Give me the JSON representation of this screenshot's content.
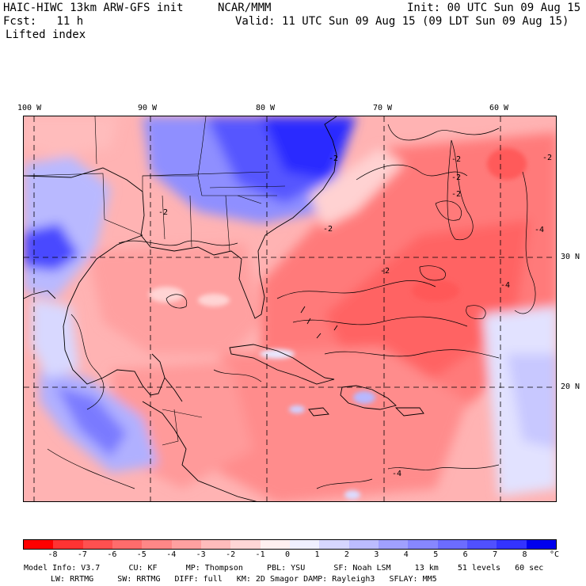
{
  "header": {
    "model": "HAIC-HIWC 13km ARW-GFS init",
    "org": "NCAR/MMM",
    "init": "Init: 00 UTC Sun 09 Aug 15",
    "fcst": "Fcst:   11 h",
    "valid": "Valid: 11 UTC Sun 09 Aug 15 (09 LDT Sun 09 Aug 15)",
    "field": "Lifted index"
  },
  "map": {
    "lon_labels": [
      "100 W",
      "90 W",
      "80 W",
      "70 W",
      "60 W"
    ],
    "lat_labels": [
      "30 N",
      "20 N"
    ],
    "contour_labels": [
      "-2",
      "-2",
      "-2",
      "-2",
      "-2",
      "-2",
      "-4",
      "-4",
      "-4",
      "-2",
      "-2"
    ]
  },
  "colorbar": {
    "colors": [
      "#ff0000",
      "#ff3333",
      "#ff5050",
      "#ff6c6c",
      "#ff8787",
      "#ffa0a0",
      "#ffbcbc",
      "#ffd6d6",
      "#fff0f0",
      "#f0f0ff",
      "#d6d6ff",
      "#bcbcff",
      "#a0a0ff",
      "#8787ff",
      "#6c6cff",
      "#5050ff",
      "#3333ff",
      "#0000ee"
    ],
    "ticks": [
      "-8",
      "-7",
      "-6",
      "-5",
      "-4",
      "-3",
      "-2",
      "-1",
      "0",
      "1",
      "2",
      "3",
      "4",
      "5",
      "6",
      "7",
      "8"
    ],
    "unit": "°C"
  },
  "footer": {
    "line1": "Model Info: V3.7      CU: KF      MP: Thompson     PBL: YSU      SF: Noah LSM     13 km    51 levels   60 sec",
    "line2": "LW: RRTMG     SW: RRTMG   DIFF: full   KM: 2D Smagor DAMP: Rayleigh3   SFLAY: MM5"
  }
}
